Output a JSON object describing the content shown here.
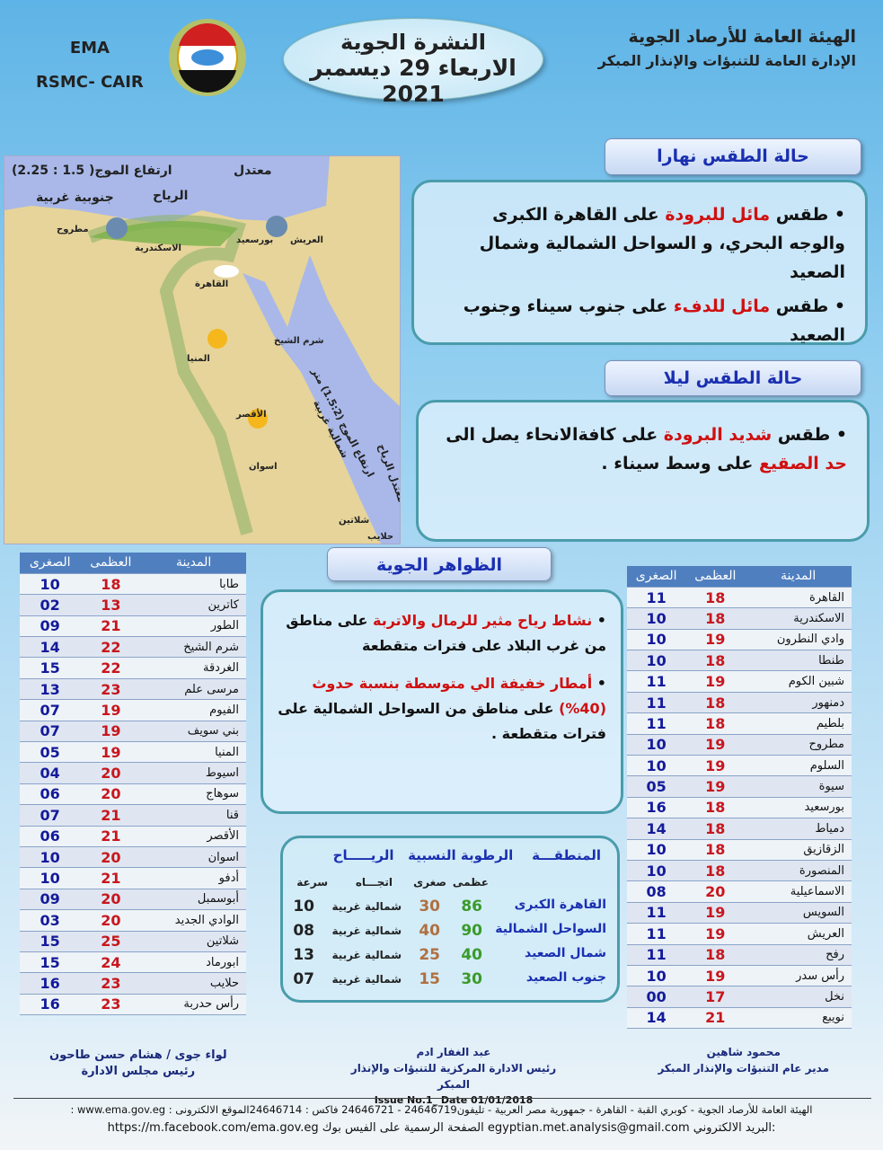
{
  "header": {
    "org_line1": "الهيئة العامة للأرصاد الجوية",
    "org_line2": "الإدارة العامة للتنبؤات والإنذار المبكر",
    "title": "النشرة الجوية",
    "date": "الاربعاء 29 ديسمبر 2021",
    "ema": "EMA",
    "rsmc": "RSMC- CAIR",
    "logo_text": "EMA"
  },
  "map": {
    "wave_label": "ارتفاع الموج( 1.5 : 2.25)",
    "wave_state": "معتدل",
    "wind_label": "الرياح",
    "wind_dir": "جنوبية غربية",
    "redsea_wave": "ارتفاع الموج (1.5:2) متر",
    "redsea_dir": "شمالية غربية",
    "redsea_wind": "معتدل الرياح",
    "cities": [
      "مطروح",
      "الاسكندرية",
      "بورسعيد",
      "العريش",
      "القاهرة",
      "شرم الشيخ",
      "المنيا",
      "الأقصر",
      "اسوان",
      "شلاتين",
      "حلايب"
    ]
  },
  "day": {
    "title": "حالة الطقس نهارا",
    "items": [
      [
        {
          "t": "طقس "
        },
        {
          "t": "مائل للبرودة",
          "red": true
        },
        {
          "t": " على القاهرة الكبرى والوجه البحري، و السواحل الشمالية وشمال الصعيد"
        }
      ],
      [
        {
          "t": "طقس "
        },
        {
          "t": "مائل للدفء",
          "red": true
        },
        {
          "t": " على جنوب سيناء وجنوب الصعيد"
        }
      ]
    ]
  },
  "night": {
    "title": "حالة الطقس ليلا",
    "items": [
      [
        {
          "t": "طقس "
        },
        {
          "t": "شديد البرودة",
          "red": true
        },
        {
          "t": " على كافةالانحاء يصل الى "
        },
        {
          "t": "حد الصقيع",
          "red": true
        },
        {
          "t": " على وسط سيناء ."
        }
      ]
    ]
  },
  "phenomena": {
    "title": "الظواهر الجوية",
    "items": [
      [
        {
          "t": "نشاط رياح مثير للرمال والاتربة",
          "red": true
        },
        {
          "t": " على مناطق من غرب البلاد على فترات متقطعة"
        }
      ],
      [
        {
          "t": "أمطار خفيفة الي متوسطة بنسبة حدوث (40%)",
          "red": true
        },
        {
          "t": " على مناطق من السواحل الشمالية على فترات متقطعة ."
        }
      ]
    ]
  },
  "table_headers": {
    "city": "المدينة",
    "max": "العظمى",
    "min": "الصغرى"
  },
  "right_table": [
    [
      "القاهرة",
      "18",
      "11"
    ],
    [
      "الاسكندرية",
      "18",
      "10"
    ],
    [
      "وادي النطرون",
      "19",
      "10"
    ],
    [
      "طنطا",
      "18",
      "10"
    ],
    [
      "شبين الكوم",
      "19",
      "11"
    ],
    [
      "دمنهور",
      "18",
      "11"
    ],
    [
      "بلطيم",
      "18",
      "11"
    ],
    [
      "مطروح",
      "19",
      "10"
    ],
    [
      "السلوم",
      "19",
      "10"
    ],
    [
      "سيوة",
      "19",
      "05"
    ],
    [
      "بورسعيد",
      "18",
      "16"
    ],
    [
      "دمياط",
      "18",
      "14"
    ],
    [
      "الزقازيق",
      "18",
      "10"
    ],
    [
      "المنصورة",
      "18",
      "10"
    ],
    [
      "الاسماعيلية",
      "20",
      "08"
    ],
    [
      "السويس",
      "19",
      "11"
    ],
    [
      "العريش",
      "19",
      "11"
    ],
    [
      "رفح",
      "18",
      "11"
    ],
    [
      "رأس سدر",
      "19",
      "10"
    ],
    [
      "نخل",
      "17",
      "00"
    ],
    [
      "نويبع",
      "21",
      "14"
    ]
  ],
  "left_table": [
    [
      "طابا",
      "18",
      "10"
    ],
    [
      "كاترين",
      "13",
      "02"
    ],
    [
      "الطور",
      "21",
      "09"
    ],
    [
      "شرم الشيخ",
      "22",
      "14"
    ],
    [
      "الغردقة",
      "22",
      "15"
    ],
    [
      "مرسى علم",
      "23",
      "13"
    ],
    [
      "الفيوم",
      "19",
      "07"
    ],
    [
      "بني سويف",
      "19",
      "07"
    ],
    [
      "المنيا",
      "19",
      "05"
    ],
    [
      "اسيوط",
      "20",
      "04"
    ],
    [
      "سوهاج",
      "20",
      "06"
    ],
    [
      "قنا",
      "21",
      "07"
    ],
    [
      "الأقصر",
      "21",
      "06"
    ],
    [
      "اسوان",
      "20",
      "10"
    ],
    [
      "أدفو",
      "21",
      "10"
    ],
    [
      "أبوسمبل",
      "20",
      "09"
    ],
    [
      "الوادي الجديد",
      "20",
      "03"
    ],
    [
      "شلاتين",
      "25",
      "15"
    ],
    [
      "ابورماد",
      "24",
      "15"
    ],
    [
      "حلايب",
      "23",
      "16"
    ],
    [
      "رأس حدربة",
      "23",
      "16"
    ]
  ],
  "humidity": {
    "h_region": "المنطقـــة",
    "h_humidity": "الرطوبة النسبية",
    "h_wind": "الريـــــاح",
    "h_max": "عظمى",
    "h_min": "صغرى",
    "h_dir": "اتجـــاه",
    "h_speed": "سرعة",
    "rows": [
      [
        "القاهرة الكبرى",
        "86",
        "30",
        "شمالية غربية",
        "10"
      ],
      [
        "السواحل الشمالية",
        "90",
        "40",
        "شمالية غربية",
        "08"
      ],
      [
        "شمال الصعيد",
        "40",
        "25",
        "شمالية غربية",
        "13"
      ],
      [
        "جنوب الصعيد",
        "30",
        "15",
        "شمالية غربية",
        "07"
      ]
    ]
  },
  "signatures": [
    {
      "name": "محمود شاهين",
      "role": "مدير عام التنبؤات والإنذار المبكر"
    },
    {
      "name": "عبد الغفار ادم",
      "role": "رئيس الادارة المركزية للتنبؤات والإنذار المبكر"
    },
    {
      "name": "لواء جوى / هشام حسن طاحون",
      "role": "رئيس مجلس الادارة"
    }
  ],
  "issue": "Issue No.1_ Date 01/01/2018",
  "footer": {
    "line1": "الهيئة العامة للأرصاد الجوية - كوبري القبة - القاهرة - جمهورية مصر العربية - تليفون24646719 - 24646721 فاكس : 24646714الموقع الالكترونى : www.ema.gov.eg :",
    "line2": ":البريد الالكتروني egyptian.met.analysis@gmail.com الصفحة الرسمية على الفيس بوك https://m.facebook.com/ema.gov.eg"
  },
  "colors": {
    "max_temp": "#c8161d",
    "min_temp": "#141a9a",
    "header_blue": "#1a2fb0",
    "highlight_red": "#d01010",
    "hum_max": "#3a9a2a",
    "hum_min": "#b07040"
  }
}
